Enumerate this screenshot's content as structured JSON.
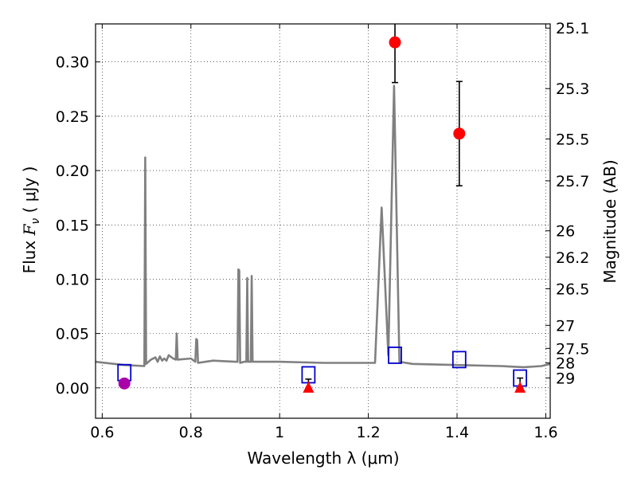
{
  "chart_data": {
    "type": "scatter",
    "xlabel": "Wavelength  λ (μm)",
    "ylabel": "Flux  F_ν  ( μJy )",
    "ylabel_parts": {
      "prefix": "Flux ",
      "symbol": "F",
      "subscript": "ν",
      "suffix": "  ( μJy )"
    },
    "y2label": "Magnitude (AB)",
    "xlim": [
      0.585,
      1.61
    ],
    "ylim": [
      -0.028,
      0.335
    ],
    "xticks": [
      0.6,
      0.8,
      1.0,
      1.2,
      1.4,
      1.6
    ],
    "xtick_labels": [
      "0.6",
      "0.8",
      "1",
      "1.2",
      "1.4",
      "1.6"
    ],
    "yticks": [
      0.0,
      0.05,
      0.1,
      0.15,
      0.2,
      0.25,
      0.3
    ],
    "ytick_labels": [
      "0.00",
      "0.05",
      "0.10",
      "0.15",
      "0.20",
      "0.25",
      "0.30"
    ],
    "y2ticks": [
      {
        "label": "25.1",
        "mag": 25.1
      },
      {
        "label": "25.3",
        "mag": 25.3
      },
      {
        "label": "25.5",
        "mag": 25.5
      },
      {
        "label": "25.7",
        "mag": 25.7
      },
      {
        "label": "26",
        "mag": 26.0
      },
      {
        "label": "26.2",
        "mag": 26.2
      },
      {
        "label": "26.5",
        "mag": 26.5
      },
      {
        "label": "27",
        "mag": 27.0
      },
      {
        "label": "27.5",
        "mag": 27.5
      },
      {
        "label": "28",
        "mag": 28.0
      },
      {
        "label": "29",
        "mag": 29.0
      }
    ],
    "grid": true,
    "model_spectrum": {
      "color": "#808080",
      "points": [
        [
          0.585,
          0.024
        ],
        [
          0.65,
          0.021
        ],
        [
          0.695,
          0.02
        ],
        [
          0.697,
          0.212
        ],
        [
          0.699,
          0.022
        ],
        [
          0.71,
          0.026
        ],
        [
          0.72,
          0.028
        ],
        [
          0.725,
          0.024
        ],
        [
          0.73,
          0.029
        ],
        [
          0.735,
          0.025
        ],
        [
          0.74,
          0.027
        ],
        [
          0.745,
          0.025
        ],
        [
          0.75,
          0.03
        ],
        [
          0.76,
          0.027
        ],
        [
          0.766,
          0.026
        ],
        [
          0.768,
          0.05
        ],
        [
          0.77,
          0.026
        ],
        [
          0.8,
          0.027
        ],
        [
          0.81,
          0.024
        ],
        [
          0.812,
          0.045
        ],
        [
          0.814,
          0.044
        ],
        [
          0.816,
          0.023
        ],
        [
          0.85,
          0.025
        ],
        [
          0.9,
          0.024
        ],
        [
          0.905,
          0.024
        ],
        [
          0.907,
          0.109
        ],
        [
          0.909,
          0.108
        ],
        [
          0.911,
          0.023
        ],
        [
          0.92,
          0.024
        ],
        [
          0.925,
          0.024
        ],
        [
          0.927,
          0.101
        ],
        [
          0.929,
          0.024
        ],
        [
          0.935,
          0.024
        ],
        [
          0.937,
          0.103
        ],
        [
          0.939,
          0.024
        ],
        [
          0.95,
          0.024
        ],
        [
          1.0,
          0.024
        ],
        [
          1.1,
          0.023
        ],
        [
          1.2,
          0.023
        ],
        [
          1.215,
          0.023
        ],
        [
          1.23,
          0.166
        ],
        [
          1.245,
          0.03
        ],
        [
          1.258,
          0.278
        ],
        [
          1.27,
          0.024
        ],
        [
          1.3,
          0.022
        ],
        [
          1.4,
          0.021
        ],
        [
          1.5,
          0.02
        ],
        [
          1.55,
          0.019
        ],
        [
          1.59,
          0.02
        ],
        [
          1.61,
          0.022
        ]
      ]
    },
    "model_photometry": {
      "marker": "open-square",
      "color": "#0000cc",
      "points": [
        {
          "x": 0.65,
          "y": 0.014
        },
        {
          "x": 1.065,
          "y": 0.012
        },
        {
          "x": 1.26,
          "y": 0.03
        },
        {
          "x": 1.405,
          "y": 0.026
        },
        {
          "x": 1.542,
          "y": 0.009
        }
      ]
    },
    "detections": {
      "marker": "filled-circle",
      "color": "#ff0000",
      "points": [
        {
          "x": 1.26,
          "y": 0.318,
          "err_low": 0.281,
          "err_high": 0.34
        },
        {
          "x": 1.405,
          "y": 0.234,
          "err_low": 0.186,
          "err_high": 0.282
        }
      ]
    },
    "upper_limits": {
      "marker": "filled-triangle",
      "color": "#ff0000",
      "points": [
        {
          "x": 1.065,
          "y": 0.0,
          "err_high": 0.008
        },
        {
          "x": 1.542,
          "y": 0.0,
          "err_high": 0.009
        }
      ]
    },
    "other_points": {
      "marker": "filled-circle",
      "color": "#aa00aa",
      "points": [
        {
          "x": 0.65,
          "y": 0.004,
          "err_high": 0.008
        }
      ]
    }
  }
}
